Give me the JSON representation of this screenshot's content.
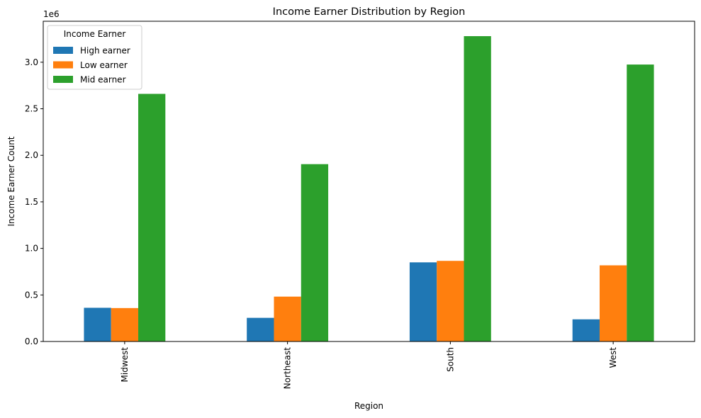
{
  "chart_data": {
    "type": "bar",
    "title": "Income Earner Distribution by Region",
    "xlabel": "Region",
    "ylabel": "Income Earner Count",
    "y_offset_text": "1e6",
    "categories": [
      "Midwest",
      "Northeast",
      "South",
      "West"
    ],
    "series": [
      {
        "name": "High earner",
        "color": "#1f77b4",
        "values": [
          362000,
          254000,
          850000,
          238000
        ]
      },
      {
        "name": "Low earner",
        "color": "#ff7f0e",
        "values": [
          359000,
          482000,
          866000,
          818000
        ]
      },
      {
        "name": "Mid earner",
        "color": "#2ca02c",
        "values": [
          2660000,
          1905000,
          3280000,
          2975000
        ]
      }
    ],
    "ylim": [
      0,
      3440000
    ],
    "yticks": [
      0,
      500000,
      1000000,
      1500000,
      2000000,
      2500000,
      3000000
    ],
    "ytick_labels": [
      "0.0",
      "0.5",
      "1.0",
      "1.5",
      "2.0",
      "2.5",
      "3.0"
    ],
    "legend": {
      "title": "Income Earner",
      "placement": "top-left"
    },
    "grid": false
  }
}
